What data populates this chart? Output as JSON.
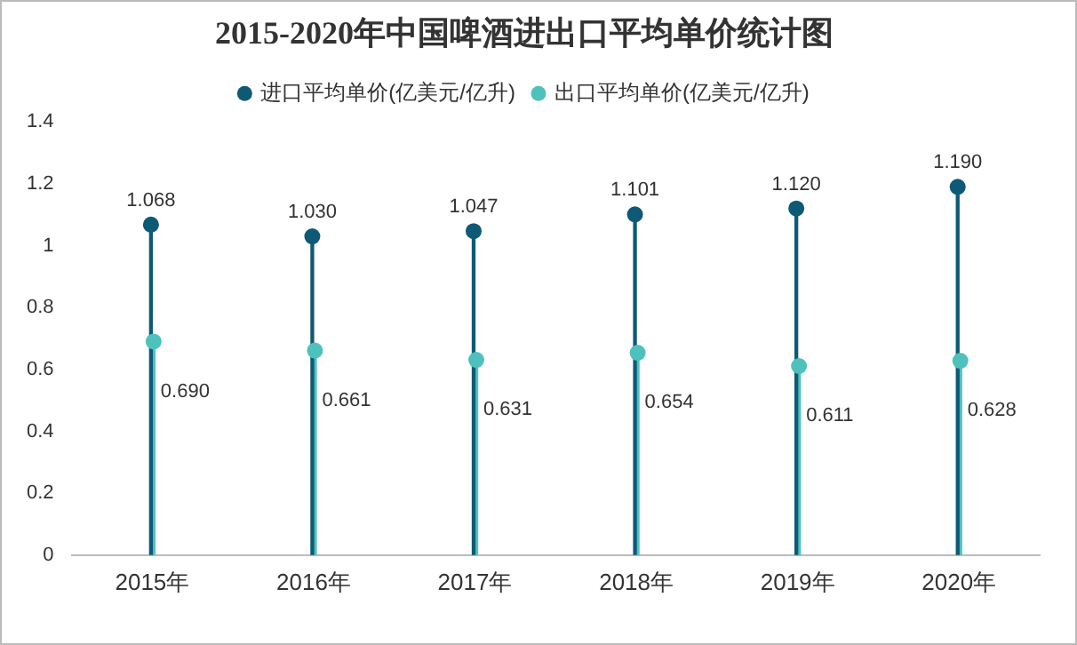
{
  "chart_data": {
    "type": "lollipop",
    "title": "2015-2020年中国啤酒进出口平均单价统计图",
    "categories": [
      "2015年",
      "2016年",
      "2017年",
      "2018年",
      "2019年",
      "2020年"
    ],
    "series": [
      {
        "name": "进口平均单价(亿美元/亿升)",
        "color": "#0e5a76",
        "values": [
          1.068,
          1.03,
          1.047,
          1.101,
          1.12,
          1.19
        ],
        "value_labels": [
          "1.068",
          "1.030",
          "1.047",
          "1.101",
          "1.120",
          "1.190"
        ]
      },
      {
        "name": "出口平均单价(亿美元/亿升)",
        "color": "#4fc1bd",
        "values": [
          0.69,
          0.661,
          0.631,
          0.654,
          0.611,
          0.628
        ],
        "value_labels": [
          "0.690",
          "0.661",
          "0.631",
          "0.654",
          "0.611",
          "0.628"
        ]
      }
    ],
    "ylim": [
      0,
      1.4
    ],
    "yticks": [
      0,
      0.2,
      0.4,
      0.6,
      0.8,
      1,
      1.2,
      1.4
    ],
    "grid": false,
    "legend": "top",
    "marker": "circle"
  }
}
